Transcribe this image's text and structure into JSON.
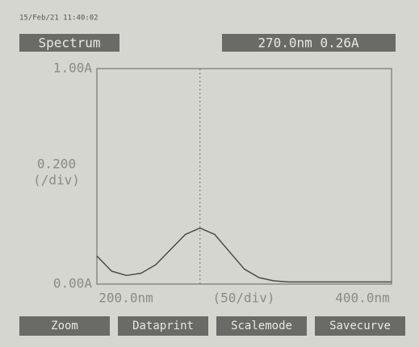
{
  "chart_data": {
    "type": "line",
    "timestamp": "15/Feb/21 11:40:02",
    "title": "Spectrum",
    "cursor_readout": "270.0nm 0.26A",
    "cursor_x": 270,
    "y_scale_label": [
      "0.200",
      "(/div)"
    ],
    "x_scale_label": "(50/div)",
    "x": [
      200,
      210,
      220,
      230,
      240,
      250,
      260,
      270,
      280,
      290,
      300,
      310,
      320,
      330,
      340,
      350,
      360,
      370,
      380,
      390,
      400
    ],
    "series": [
      {
        "color": "#4a4a4a",
        "values": [
          0.13,
          0.06,
          0.04,
          0.05,
          0.09,
          0.16,
          0.23,
          0.26,
          0.23,
          0.15,
          0.07,
          0.03,
          0.015,
          0.01,
          0.01,
          0.01,
          0.01,
          0.01,
          0.01,
          0.01,
          0.01
        ]
      }
    ],
    "xlim": [
      200,
      400
    ],
    "ylim": [
      0,
      1
    ],
    "xticks": [
      {
        "value": 200,
        "label": "200.0nm"
      },
      {
        "value": 400,
        "label": "400.0nm"
      }
    ],
    "yticks": [
      {
        "value": 0,
        "label": "0.00A"
      },
      {
        "value": 1,
        "label": "1.00A"
      }
    ],
    "buttons": [
      "Zoom",
      "Dataprint",
      "Scalemode",
      "Savecurve"
    ]
  }
}
